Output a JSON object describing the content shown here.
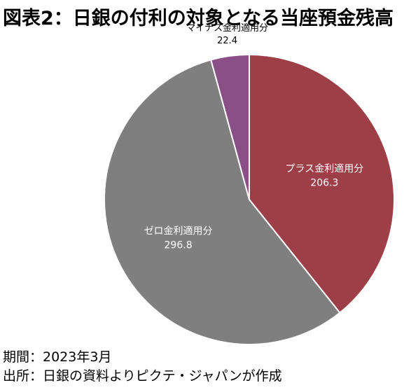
{
  "title": "図表2：日銀の付利の対象となる当座預金残高",
  "footer": {
    "period": "期間：2023年3月",
    "source": "出所：日銀の資料よりピクテ・ジャパンが作成"
  },
  "chart_data": {
    "type": "pie",
    "title": "図表2：日銀の付利の対象となる当座預金残高",
    "start": "12 o'clock",
    "direction": "clockwise",
    "slices": [
      {
        "label": "プラス金利適用分",
        "value": 206.3,
        "value_label": "206.3",
        "color": "#9e3f47",
        "label_color": "#ffffff",
        "label_position": "inside"
      },
      {
        "label": "ゼロ金利適用分",
        "value": 296.8,
        "value_label": "296.8",
        "color": "#7f7f7f",
        "label_color": "#ffffff",
        "label_position": "inside"
      },
      {
        "label": "マイナス金利適用分",
        "value": 22.4,
        "value_label": "22.4",
        "color": "#8a4f86",
        "label_color": "#000000",
        "label_position": "outside"
      }
    ]
  }
}
